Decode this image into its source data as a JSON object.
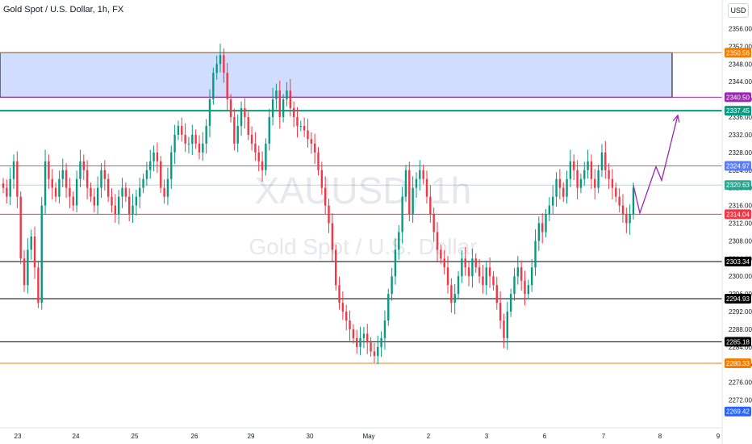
{
  "header": {
    "symbol_title": "Gold Spot / U.S. Dollar, 1h, FX",
    "currency": "USD"
  },
  "watermark": {
    "symbol": "XAUUSD, 1h",
    "description": "Gold Spot / U.S. Dollar"
  },
  "chart_data": {
    "type": "candlestick",
    "interval": "1h",
    "ylim": [
      2267,
      2357
    ],
    "y_ticks": [
      2356,
      2352,
      2348,
      2344,
      2340,
      2336,
      2332,
      2328,
      2324,
      2320,
      2316,
      2312,
      2308,
      2304,
      2300,
      2296,
      2292,
      2288,
      2284,
      2280,
      2276,
      2272
    ],
    "x_ticks": [
      "23",
      "24",
      "25",
      "26",
      "29",
      "30",
      "May",
      "2",
      "3",
      "6",
      "7",
      "8",
      "9"
    ],
    "grid": false,
    "colors": {
      "up": "#089981",
      "down": "#f23645"
    },
    "levels": [
      {
        "price": 2350.56,
        "label": "2350.56",
        "color": "#f57c00"
      },
      {
        "price": 2340.5,
        "label": "2340.50",
        "color": "#9c27b0"
      },
      {
        "price": 2337.45,
        "label": "2337.45",
        "color": "#089981"
      },
      {
        "price": 2324.97,
        "label": "2324.97",
        "color": "#5b7cfa"
      },
      {
        "price": 2320.63,
        "label": "2320.63",
        "color": "#089981"
      },
      {
        "price": 2314.04,
        "label": "2314.04",
        "color": "#f23645"
      },
      {
        "price": 2303.34,
        "label": "2303.34",
        "color": "#000000"
      },
      {
        "price": 2294.93,
        "label": "2294.93",
        "color": "#000000"
      },
      {
        "price": 2285.18,
        "label": "2285.18",
        "color": "#000000"
      },
      {
        "price": 2280.33,
        "label": "2280.33",
        "color": "#f57c00"
      },
      {
        "price": 2269.42,
        "label": "2269.42",
        "color": "#2962ff"
      }
    ],
    "zone": {
      "from": 2340.5,
      "to": 2350.56,
      "fill": "#2962ff",
      "border": "#000000"
    },
    "projection": {
      "color": "#9c27b0",
      "points": [
        [
          0,
          2320.6
        ],
        [
          8,
          2314.3
        ],
        [
          28,
          2324.8
        ],
        [
          35,
          2321.7
        ],
        [
          55,
          2336.4
        ]
      ]
    },
    "closes": [
      2320,
      2318,
      2322,
      2326,
      2318,
      2304,
      2298,
      2306,
      2309,
      2302,
      2294,
      2316,
      2326,
      2322,
      2320,
      2318,
      2322,
      2324,
      2320,
      2318,
      2316,
      2322,
      2326,
      2324,
      2320,
      2318,
      2316,
      2320,
      2324,
      2322,
      2318,
      2316,
      2314,
      2318,
      2320,
      2318,
      2314,
      2316,
      2318,
      2320,
      2322,
      2324,
      2326,
      2328,
      2326,
      2320,
      2318,
      2322,
      2328,
      2332,
      2334,
      2332,
      2330,
      2330,
      2332,
      2330,
      2328,
      2330,
      2334,
      2340,
      2346,
      2348,
      2350,
      2346,
      2340,
      2336,
      2330,
      2334,
      2338,
      2336,
      2332,
      2330,
      2328,
      2326,
      2324,
      2330,
      2336,
      2340,
      2342,
      2336,
      2340,
      2342,
      2338,
      2336,
      2334,
      2334,
      2333,
      2331,
      2330,
      2328,
      2324,
      2320,
      2316,
      2312,
      2306,
      2298,
      2294,
      2292,
      2290,
      2288,
      2286,
      2284,
      2286,
      2287,
      2285,
      2283,
      2282,
      2284,
      2286,
      2290,
      2296,
      2300,
      2306,
      2310,
      2318,
      2324,
      2314,
      2320,
      2322,
      2324,
      2322,
      2318,
      2314,
      2310,
      2306,
      2304,
      2302,
      2298,
      2294,
      2296,
      2300,
      2304,
      2302,
      2300,
      2304,
      2302,
      2300,
      2298,
      2302,
      2300,
      2298,
      2294,
      2290,
      2286,
      2292,
      2296,
      2300,
      2302,
      2299,
      2296,
      2298,
      2302,
      2308,
      2312,
      2310,
      2314,
      2316,
      2318,
      2322,
      2320,
      2318,
      2322,
      2326,
      2324,
      2320,
      2322,
      2324,
      2326,
      2322,
      2320,
      2324,
      2328,
      2324,
      2322,
      2320,
      2318,
      2316,
      2314,
      2312,
      2314,
      2320
    ]
  }
}
